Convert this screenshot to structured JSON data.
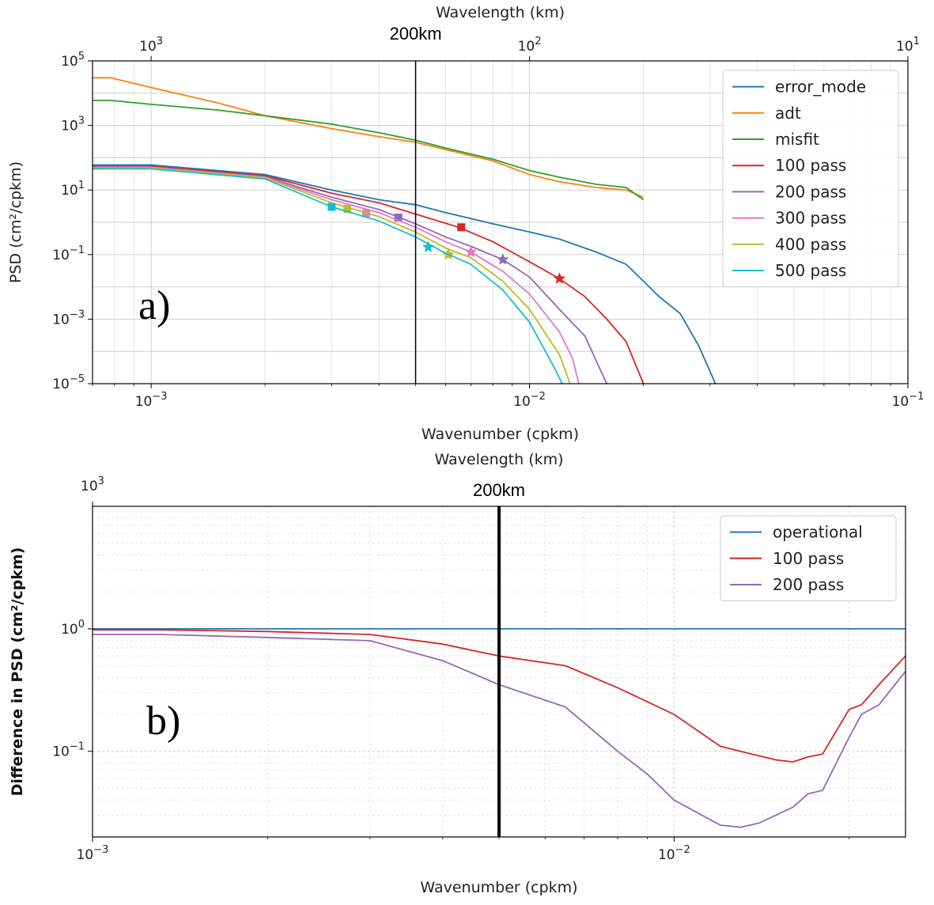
{
  "chart_data": [
    {
      "panel": "a)",
      "type": "line",
      "xscale": "log",
      "yscale": "log",
      "xlabel": "Wavenumber (cpkm)",
      "ylabel": "PSD (cm²/cpkm)",
      "top_axis_label": "Wavelength (km)",
      "xlim": [
        0.0007,
        0.1
      ],
      "ylim": [
        1e-05,
        100000
      ],
      "x_ticks": [
        {
          "value": 0.001,
          "base": "10",
          "exp": "−3"
        },
        {
          "value": 0.01,
          "base": "10",
          "exp": "−2"
        },
        {
          "value": 0.1,
          "base": "10",
          "exp": "−1"
        }
      ],
      "y_ticks": [
        {
          "value": 1e-05,
          "base": "10",
          "exp": "−5"
        },
        {
          "value": 0.001,
          "base": "10",
          "exp": "−3"
        },
        {
          "value": 0.1,
          "base": "10",
          "exp": "−1"
        },
        {
          "value": 10,
          "base": "10",
          "exp": "1"
        },
        {
          "value": 1000,
          "base": "10",
          "exp": "3"
        },
        {
          "value": 100000,
          "base": "10",
          "exp": "5"
        }
      ],
      "top_ticks": [
        {
          "value": 0.001,
          "base": "10",
          "exp": "3"
        },
        {
          "value": 0.01,
          "base": "10",
          "exp": "2"
        },
        {
          "value": 0.1,
          "base": "10",
          "exp": "1"
        }
      ],
      "vline": {
        "x": 0.005,
        "label": "200km"
      },
      "annotation": "a)",
      "series": [
        {
          "name": "error_mode",
          "color": "#1f77b4",
          "x": [
            0.0007,
            0.001,
            0.002,
            0.003,
            0.004,
            0.005,
            0.006,
            0.008,
            0.01,
            0.012,
            0.015,
            0.018,
            0.02,
            0.022,
            0.025,
            0.028,
            0.031
          ],
          "y": [
            60,
            60,
            30,
            10,
            5,
            3.5,
            2,
            0.9,
            0.5,
            0.3,
            0.12,
            0.05,
            0.015,
            0.005,
            0.0015,
            0.00015,
            1e-05
          ]
        },
        {
          "name": "adt",
          "color": "#ff7f0e",
          "x": [
            0.0007,
            0.00078,
            0.001,
            0.0015,
            0.002,
            0.003,
            0.004,
            0.005,
            0.006,
            0.008,
            0.01,
            0.012,
            0.015,
            0.018,
            0.02
          ],
          "y": [
            30000,
            30000,
            15000,
            5000,
            2000,
            800,
            450,
            300,
            180,
            80,
            30,
            18,
            12,
            10,
            6
          ]
        },
        {
          "name": "misfit",
          "color": "#2ca02c",
          "x": [
            0.0007,
            0.00078,
            0.001,
            0.0015,
            0.002,
            0.003,
            0.004,
            0.005,
            0.006,
            0.008,
            0.01,
            0.012,
            0.015,
            0.018,
            0.02
          ],
          "y": [
            6000,
            6000,
            4500,
            3000,
            2000,
            1100,
            600,
            350,
            200,
            90,
            40,
            25,
            15,
            12,
            5
          ]
        },
        {
          "name": "100 pass",
          "color": "#d62728",
          "x": [
            0.0007,
            0.001,
            0.002,
            0.003,
            0.004,
            0.005,
            0.0065,
            0.008,
            0.01,
            0.012,
            0.014,
            0.016,
            0.018,
            0.02
          ],
          "y": [
            55,
            55,
            28,
            8,
            4,
            1.8,
            0.7,
            0.25,
            0.06,
            0.018,
            0.005,
            0.001,
            0.0002,
            1e-05
          ],
          "markers": [
            {
              "x": 0.0066,
              "y": 0.7,
              "shape": "square"
            },
            {
              "x": 0.012,
              "y": 0.018,
              "shape": "star"
            }
          ]
        },
        {
          "name": "200 pass",
          "color": "#9467bd",
          "x": [
            0.0007,
            0.001,
            0.002,
            0.003,
            0.004,
            0.005,
            0.006,
            0.007,
            0.0085,
            0.01,
            0.012,
            0.014,
            0.016
          ],
          "y": [
            52,
            52,
            26,
            6,
            2.5,
            0.9,
            0.35,
            0.18,
            0.07,
            0.02,
            0.002,
            0.0003,
            1e-05
          ],
          "markers": [
            {
              "x": 0.0045,
              "y": 1.4,
              "shape": "square"
            },
            {
              "x": 0.0085,
              "y": 0.07,
              "shape": "star"
            }
          ]
        },
        {
          "name": "300 pass",
          "color": "#e377c2",
          "x": [
            0.0007,
            0.001,
            0.002,
            0.003,
            0.004,
            0.005,
            0.006,
            0.007,
            0.0085,
            0.01,
            0.012,
            0.013,
            0.0135
          ],
          "y": [
            50,
            50,
            25,
            5,
            2,
            0.7,
            0.25,
            0.12,
            0.03,
            0.006,
            0.0004,
            6e-05,
            1e-05
          ],
          "markers": [
            {
              "x": 0.0037,
              "y": 1.9,
              "shape": "square"
            },
            {
              "x": 0.007,
              "y": 0.12,
              "shape": "star"
            }
          ]
        },
        {
          "name": "400 pass",
          "color": "#bcbd22",
          "x": [
            0.0007,
            0.001,
            0.002,
            0.003,
            0.004,
            0.005,
            0.006,
            0.007,
            0.0085,
            0.01,
            0.012,
            0.0128
          ],
          "y": [
            48,
            48,
            24,
            4,
            1.5,
            0.5,
            0.16,
            0.08,
            0.015,
            0.002,
            8e-05,
            1e-05
          ],
          "markers": [
            {
              "x": 0.0033,
              "y": 2.6,
              "shape": "square"
            },
            {
              "x": 0.0061,
              "y": 0.1,
              "shape": "star"
            }
          ]
        },
        {
          "name": "500 pass",
          "color": "#17becf",
          "x": [
            0.0007,
            0.001,
            0.002,
            0.003,
            0.004,
            0.005,
            0.006,
            0.007,
            0.0085,
            0.01,
            0.0115,
            0.0122
          ],
          "y": [
            45,
            45,
            22,
            3,
            1.1,
            0.35,
            0.11,
            0.05,
            0.008,
            0.0008,
            4e-05,
            1e-05
          ],
          "markers": [
            {
              "x": 0.003,
              "y": 3,
              "shape": "square"
            },
            {
              "x": 0.0054,
              "y": 0.17,
              "shape": "star"
            }
          ]
        }
      ]
    },
    {
      "panel": "b)",
      "type": "line",
      "xscale": "log",
      "yscale": "log",
      "xlabel": "Wavenumber (cpkm)",
      "ylabel": "Difference in PSD (cm²/cpkm)",
      "top_axis_label": "Wavelength (km)",
      "xlim": [
        0.001,
        0.025
      ],
      "ylim": [
        0.02,
        10
      ],
      "x_ticks": [
        {
          "value": 0.001,
          "base": "10",
          "exp": "−3"
        },
        {
          "value": 0.01,
          "base": "10",
          "exp": "−2"
        }
      ],
      "y_ticks": [
        {
          "value": 0.1,
          "base": "10",
          "exp": "−1"
        },
        {
          "value": 1,
          "base": "10",
          "exp": "0"
        }
      ],
      "top_ticks": [
        {
          "value": 0.001,
          "base": "10",
          "exp": "3"
        }
      ],
      "vline": {
        "x": 0.005,
        "label": "200km"
      },
      "annotation": "b)",
      "series": [
        {
          "name": "operational",
          "color": "#1f77b4",
          "x": [
            0.001,
            0.025
          ],
          "y": [
            1.0,
            1.0
          ]
        },
        {
          "name": "100 pass",
          "color": "#d62728",
          "x": [
            0.001,
            0.0013,
            0.002,
            0.003,
            0.004,
            0.005,
            0.0065,
            0.008,
            0.01,
            0.012,
            0.013,
            0.015,
            0.016,
            0.017,
            0.018,
            0.02,
            0.021,
            0.0225,
            0.025
          ],
          "y": [
            0.98,
            0.98,
            0.95,
            0.9,
            0.75,
            0.6,
            0.5,
            0.33,
            0.2,
            0.11,
            0.1,
            0.085,
            0.082,
            0.09,
            0.095,
            0.22,
            0.24,
            0.35,
            0.6
          ]
        },
        {
          "name": "200 pass",
          "color": "#9467bd",
          "x": [
            0.001,
            0.0013,
            0.002,
            0.003,
            0.004,
            0.005,
            0.0065,
            0.008,
            0.009,
            0.01,
            0.012,
            0.013,
            0.014,
            0.016,
            0.017,
            0.018,
            0.02,
            0.021,
            0.0225,
            0.025
          ],
          "y": [
            0.9,
            0.9,
            0.85,
            0.8,
            0.55,
            0.35,
            0.23,
            0.1,
            0.065,
            0.04,
            0.025,
            0.024,
            0.026,
            0.035,
            0.045,
            0.048,
            0.13,
            0.2,
            0.24,
            0.45
          ]
        }
      ]
    }
  ]
}
